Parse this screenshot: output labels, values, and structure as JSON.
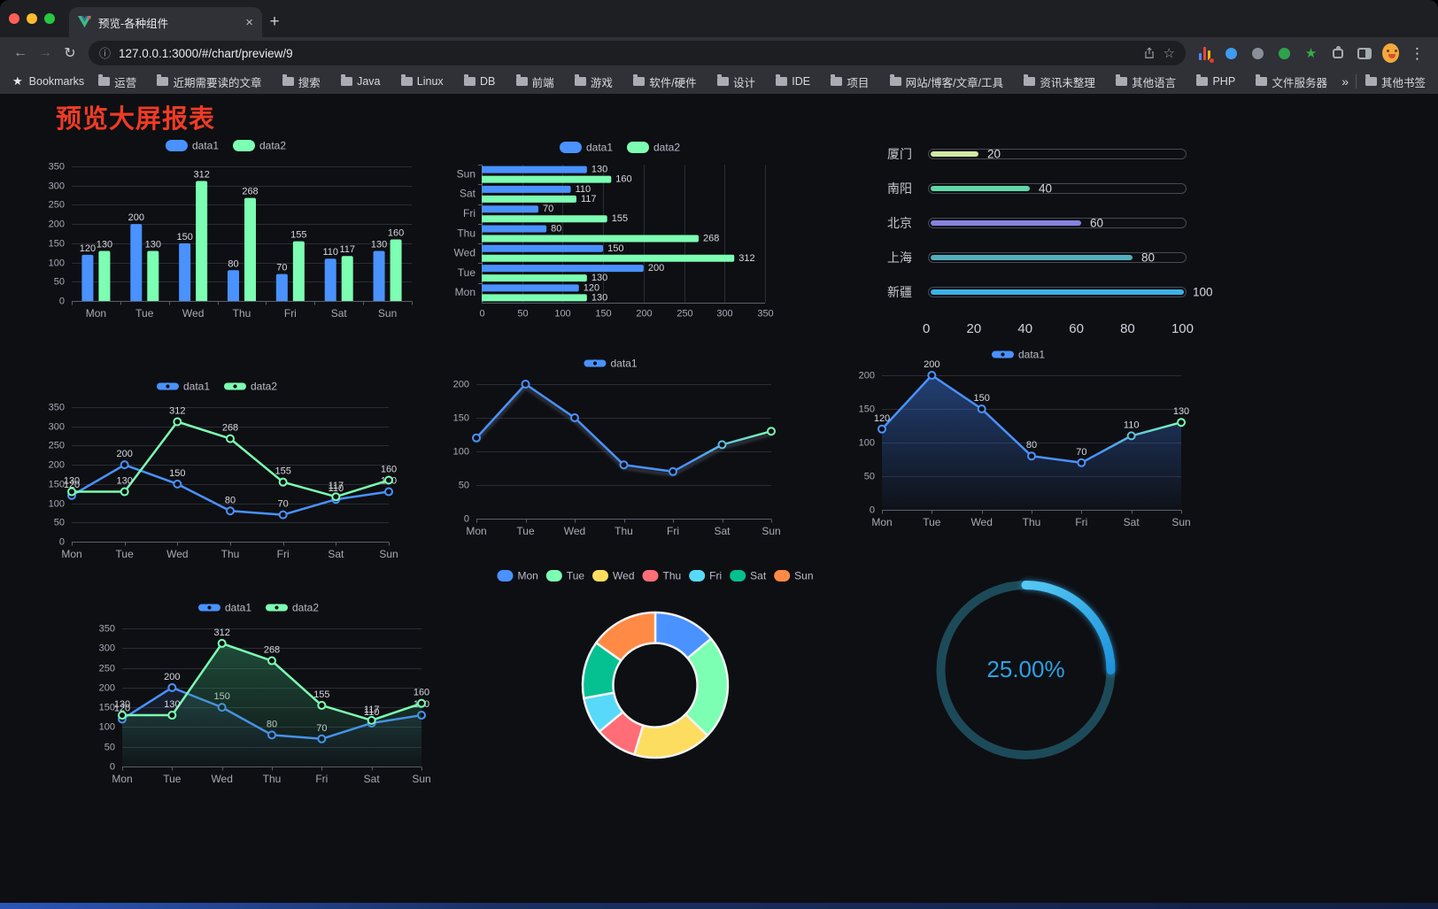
{
  "browser": {
    "tab_title": "预览-各种组件",
    "url": "127.0.0.1:3000/#/chart/preview/9",
    "bookmarks_label": "Bookmarks",
    "bookmarks": [
      "运营",
      "近期需要读的文章",
      "搜索",
      "Java",
      "Linux",
      "DB",
      "前端",
      "游戏",
      "软件/硬件",
      "设计",
      "IDE",
      "项目",
      "网站/博客/文章/工具",
      "资讯未整理",
      "其他语言",
      "PHP",
      "文件服务器"
    ],
    "other_bookmarks": "其他书签",
    "glyphs": {
      "back": "←",
      "forward": "→",
      "reload": "↻",
      "info": "ⓘ",
      "star": "☆",
      "menu": "⋮",
      "plus": "+",
      "close": "×",
      "bookmarks_star": "★",
      "overflow": "»"
    }
  },
  "page": {
    "title": "预览大屏报表"
  },
  "chart_data": [
    {
      "type": "bar",
      "categories": [
        "Mon",
        "Tue",
        "Wed",
        "Thu",
        "Fri",
        "Sat",
        "Sun"
      ],
      "series": [
        {
          "name": "data1",
          "color": "#4992ff",
          "values": [
            120,
            200,
            150,
            80,
            70,
            110,
            130
          ]
        },
        {
          "name": "data2",
          "color": "#7cffb2",
          "values": [
            130,
            130,
            312,
            268,
            155,
            117,
            160
          ]
        }
      ],
      "ylim": [
        0,
        350
      ],
      "yticks": [
        0,
        50,
        100,
        150,
        200,
        250,
        300,
        350
      ],
      "legend": [
        "data1",
        "data2"
      ],
      "legend_position": "top",
      "grid": true,
      "show_labels": true
    },
    {
      "type": "hbar",
      "categories": [
        "Mon",
        "Tue",
        "Wed",
        "Thu",
        "Fri",
        "Sat",
        "Sun"
      ],
      "series": [
        {
          "name": "data1",
          "color": "#4992ff",
          "values": [
            120,
            200,
            150,
            80,
            70,
            110,
            130
          ]
        },
        {
          "name": "data2",
          "color": "#7cffb2",
          "values": [
            130,
            130,
            312,
            268,
            155,
            117,
            160
          ]
        }
      ],
      "xlim": [
        0,
        350
      ],
      "xticks": [
        0,
        50,
        100,
        150,
        200,
        250,
        300,
        350
      ],
      "legend": [
        "data1",
        "data2"
      ],
      "legend_position": "top",
      "show_labels": true
    },
    {
      "type": "progress",
      "items": [
        {
          "label": "厦门",
          "value": 20,
          "color": "#d2e8a6"
        },
        {
          "label": "南阳",
          "value": 40,
          "color": "#60d7a7"
        },
        {
          "label": "北京",
          "value": 60,
          "color": "#8583dd"
        },
        {
          "label": "上海",
          "value": 80,
          "color": "#54aebd"
        },
        {
          "label": "新疆",
          "value": 100,
          "color": "#3cb1e6"
        }
      ],
      "max": 100,
      "xticks": [
        0,
        20,
        40,
        60,
        80,
        100
      ]
    },
    {
      "type": "line",
      "categories": [
        "Mon",
        "Tue",
        "Wed",
        "Thu",
        "Fri",
        "Sat",
        "Sun"
      ],
      "series": [
        {
          "name": "data1",
          "color": "#4992ff",
          "values": [
            120,
            200,
            150,
            80,
            70,
            110,
            130
          ]
        },
        {
          "name": "data2",
          "color": "#7cffb2",
          "values": [
            130,
            130,
            312,
            268,
            155,
            117,
            160
          ]
        }
      ],
      "ylim": [
        0,
        350
      ],
      "yticks": [
        0,
        50,
        100,
        150,
        200,
        250,
        300,
        350
      ],
      "legend": [
        "data1",
        "data2"
      ],
      "show_labels": true
    },
    {
      "type": "line",
      "categories": [
        "Mon",
        "Tue",
        "Wed",
        "Thu",
        "Fri",
        "Sat",
        "Sun"
      ],
      "series": [
        {
          "name": "data1",
          "gradient": [
            "#4992ff",
            "#7cffb2"
          ],
          "values": [
            120,
            200,
            150,
            80,
            70,
            110,
            130
          ]
        }
      ],
      "ylim": [
        0,
        200
      ],
      "yticks": [
        0,
        50,
        100,
        150,
        200
      ],
      "legend": [
        "data1"
      ],
      "show_labels": false,
      "shadow": true
    },
    {
      "type": "line",
      "categories": [
        "Mon",
        "Tue",
        "Wed",
        "Thu",
        "Fri",
        "Sat",
        "Sun"
      ],
      "series": [
        {
          "name": "data1",
          "color": "#4992ff",
          "gradient": [
            "#4992ff",
            "#7cffb2"
          ],
          "values": [
            120,
            200,
            150,
            80,
            70,
            110,
            130
          ],
          "area": [
            "rgba(52,104,196,0.55)",
            "rgba(52,104,196,0.03)"
          ]
        }
      ],
      "ylim": [
        0,
        200
      ],
      "yticks": [
        0,
        50,
        100,
        150,
        200
      ],
      "legend": [
        "data1"
      ],
      "show_labels": true
    },
    {
      "type": "line",
      "categories": [
        "Mon",
        "Tue",
        "Wed",
        "Thu",
        "Fri",
        "Sat",
        "Sun"
      ],
      "series": [
        {
          "name": "data1",
          "color": "#4992ff",
          "values": [
            120,
            200,
            150,
            80,
            70,
            110,
            130
          ],
          "area": [
            "rgba(70,110,180,0.30)",
            "rgba(70,110,180,0.02)"
          ]
        },
        {
          "name": "data2",
          "color": "#7cffb2",
          "values": [
            130,
            130,
            312,
            268,
            155,
            117,
            160
          ],
          "area": [
            "rgba(52,150,104,0.50)",
            "rgba(52,150,104,0.04)"
          ]
        }
      ],
      "ylim": [
        0,
        350
      ],
      "yticks": [
        0,
        50,
        100,
        150,
        200,
        250,
        300,
        350
      ],
      "legend": [
        "data1",
        "data2"
      ],
      "show_labels": true
    },
    {
      "type": "pie",
      "categories": [
        "Mon",
        "Tue",
        "Wed",
        "Thu",
        "Fri",
        "Sat",
        "Sun"
      ],
      "values": [
        120,
        200,
        150,
        80,
        70,
        110,
        130
      ],
      "colors": [
        "#4992ff",
        "#7cffb2",
        "#fddd60",
        "#ff6e76",
        "#58d9f9",
        "#05c091",
        "#ff8a45"
      ],
      "inner_radius_ratio": 0.58,
      "legend_position": "top"
    },
    {
      "type": "gauge",
      "value": 25,
      "label": "25.00%",
      "arc_colors": [
        "#55c8f2",
        "#1e93dd"
      ],
      "track_color": "#1d4a58",
      "text_color": "#2ba2e2"
    }
  ]
}
